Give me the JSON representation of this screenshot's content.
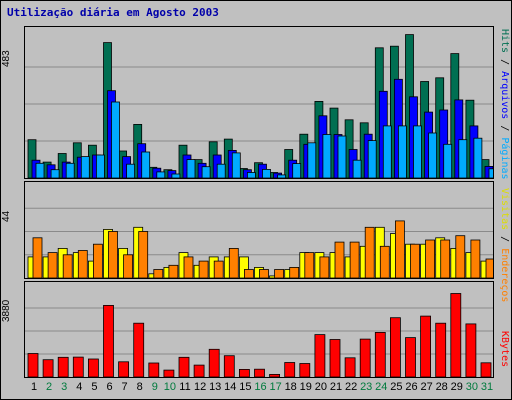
{
  "chart_data": {
    "type": "bar",
    "title": "Utilização diária em Agosto 2003",
    "categories": [
      "1",
      "2",
      "3",
      "4",
      "5",
      "6",
      "7",
      "8",
      "9",
      "10",
      "11",
      "12",
      "13",
      "14",
      "15",
      "16",
      "17",
      "18",
      "19",
      "20",
      "21",
      "22",
      "23",
      "24",
      "25",
      "26",
      "27",
      "28",
      "29",
      "30",
      "31"
    ],
    "weekend_days": [
      "2",
      "3",
      "9",
      "10",
      "16",
      "17",
      "23",
      "24",
      "30",
      "31"
    ],
    "grid": true,
    "panels": [
      {
        "id": "top",
        "max_label": "483",
        "ylim": [
          0,
          483
        ],
        "series": [
          {
            "name": "Hits",
            "color": "#006f52",
            "values": [
              125,
              52,
              80,
              115,
              107,
              442,
              88,
              175,
              35,
              27,
              107,
              60,
              118,
              127,
              31,
              50,
              18,
              93,
              143,
              250,
              228,
              190,
              180,
              425,
              430,
              468,
              315,
              327,
              406,
              254,
              60
            ]
          },
          {
            "name": "Arquivos",
            "color": "#0000ff",
            "values": [
              58,
              43,
              52,
              68,
              75,
              285,
              70,
              112,
              32,
              24,
              75,
              48,
              75,
              90,
              27,
              45,
              16,
              58,
              110,
              203,
              142,
              93,
              143,
              283,
              322,
              265,
              215,
              222,
              255,
              170,
              38
            ]
          },
          {
            "name": "Páginas",
            "color": "#00aaff",
            "values": [
              48,
              27,
              48,
              70,
              75,
              248,
              45,
              85,
              20,
              13,
              60,
              37,
              45,
              82,
              18,
              28,
              10,
              47,
              115,
              142,
              137,
              58,
              122,
              170,
              170,
              170,
              147,
              110,
              125,
              130,
              30
            ]
          }
        ]
      },
      {
        "id": "mid",
        "max_label": "44",
        "ylim": [
          0,
          44
        ],
        "series": [
          {
            "name": "Visitas",
            "color": "#ffff00",
            "values": [
              10,
              10,
              14,
              12,
              8,
              23,
              14,
              24,
              2,
              5,
              12,
              6,
              10,
              10,
              10,
              5,
              1,
              4,
              12,
              12,
              12,
              10,
              15,
              24,
              21,
              16,
              16,
              19,
              14,
              12,
              8
            ]
          },
          {
            "name": "Endereços",
            "color": "#ff8000",
            "values": [
              19,
              12,
              11,
              13,
              16,
              22,
              11,
              22,
              4,
              6,
              10,
              8,
              8,
              14,
              4,
              4,
              4,
              5,
              12,
              10,
              17,
              17,
              24,
              15,
              27,
              16,
              18,
              18,
              20,
              18,
              9
            ]
          }
        ]
      },
      {
        "id": "bot",
        "max_label": "3880",
        "ylim": [
          0,
          3880
        ],
        "series": [
          {
            "name": "KBytes",
            "color": "#ff0000",
            "values": [
              990,
              730,
              830,
              840,
              760,
              3020,
              640,
              2270,
              590,
              290,
              830,
              500,
              1170,
              900,
              320,
              330,
              110,
              610,
              570,
              1790,
              1580,
              810,
              1600,
              1880,
              2500,
              1660,
              2570,
              2270,
              3520,
              2240,
              600
            ]
          }
        ]
      }
    ]
  }
}
